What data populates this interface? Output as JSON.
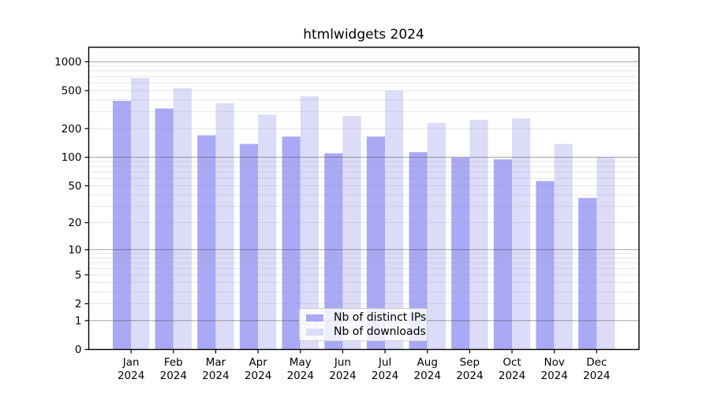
{
  "chart_data": {
    "type": "bar",
    "title": "htmlwidgets 2024",
    "categories": [
      "Jan",
      "Feb",
      "Mar",
      "Apr",
      "May",
      "Jun",
      "Jul",
      "Aug",
      "Sep",
      "Oct",
      "Nov",
      "Dec"
    ],
    "category_year": "2024",
    "series": [
      {
        "name": "Nb of distinct IPs",
        "color": "#a9a9f5",
        "values": [
          390,
          325,
          170,
          138,
          165,
          110,
          165,
          113,
          99,
          95,
          56,
          37
        ]
      },
      {
        "name": "Nb of downloads",
        "color": "#dcdcf8",
        "values": [
          675,
          530,
          370,
          280,
          436,
          272,
          500,
          230,
          247,
          256,
          138,
          100
        ]
      }
    ],
    "y_axis": {
      "scale": "log1p",
      "ticks": [
        0,
        1,
        2,
        5,
        10,
        20,
        50,
        100,
        200,
        500,
        1000
      ],
      "max": 1415,
      "grid_major": [
        1,
        10,
        100,
        1000
      ],
      "grid_minor": [
        2,
        3,
        4,
        5,
        6,
        7,
        8,
        9,
        20,
        30,
        40,
        50,
        60,
        70,
        80,
        90,
        200,
        300,
        400,
        500,
        600,
        700,
        800,
        900
      ]
    },
    "xlabel": "",
    "ylabel": "",
    "grid": true,
    "legend_position": "bottom-center",
    "colors": {
      "axis": "#000000",
      "grid_major": "#a8a8a8",
      "grid_minor": "#e2e2e2",
      "background": "#ffffff"
    }
  }
}
